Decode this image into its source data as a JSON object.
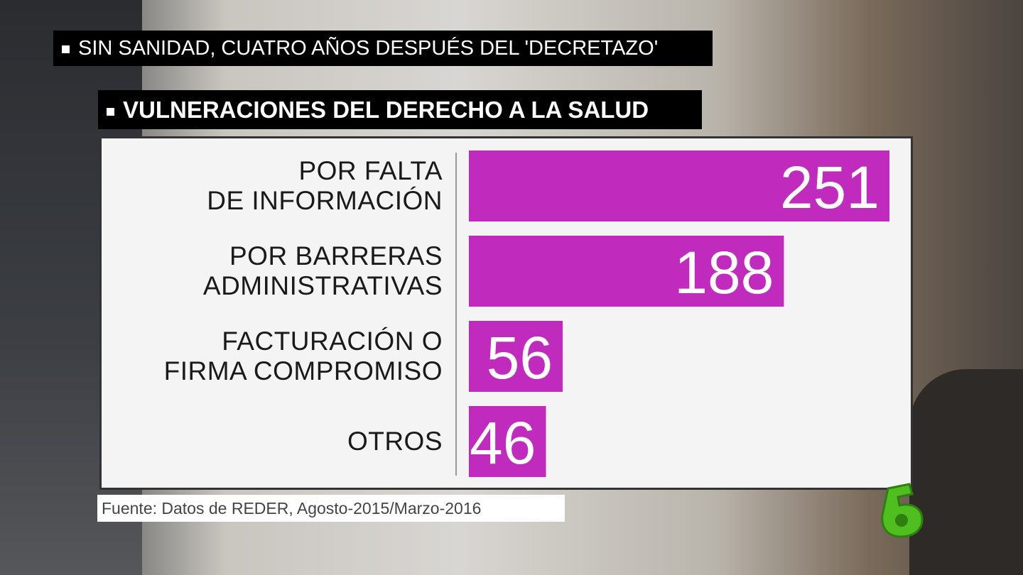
{
  "header": {
    "banner": "SIN SANIDAD, CUATRO AÑOS DESPUÉS DEL 'DECRETAZO'"
  },
  "chart_data": {
    "type": "bar",
    "orientation": "horizontal",
    "title": "VULNERACIONES DEL DERECHO A LA SALUD",
    "categories": [
      "POR FALTA\nDE INFORMACIÓN",
      "POR BARRERAS\nADMINISTRATIVAS",
      "FACTURACIÓN O\nFIRMA COMPROMISO",
      "OTROS"
    ],
    "values": [
      251,
      188,
      56,
      46
    ],
    "color": "#c02bbd",
    "source": "Fuente: Datos de REDER, Agosto-2015/Marzo-2016"
  }
}
